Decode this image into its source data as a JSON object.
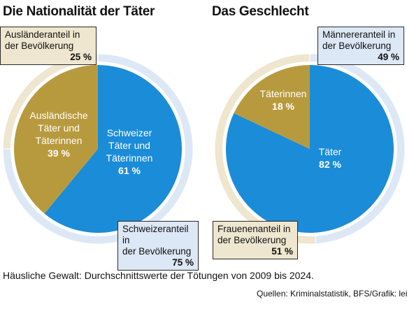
{
  "chart_data": [
    {
      "type": "pie",
      "title": "Die Nationalität der Täter",
      "categories": [
        "Schweizer Täter und Täterinnen",
        "Ausländische Täter und Täterinnen"
      ],
      "values": [
        61,
        39
      ],
      "colors": [
        "#1b8cd8",
        "#b89a3e"
      ],
      "slice_labels": [
        {
          "lines": [
            "Schweizer",
            "Täter und",
            "Täterinnen"
          ],
          "pct": "61 %"
        },
        {
          "lines": [
            "Ausländische",
            "Täter und",
            "Täterinnen"
          ],
          "pct": "39 %"
        }
      ],
      "ring": {
        "values": [
          75,
          25
        ],
        "colors": [
          "#dde8f6",
          "#efe6cf"
        ]
      },
      "annotations": [
        {
          "lines": [
            "Ausländeranteil in",
            "der Bevölkerung"
          ],
          "pct": "25 %"
        },
        {
          "lines": [
            "Schweizeranteil in",
            "der Bevölkerung"
          ],
          "pct": "75 %"
        }
      ]
    },
    {
      "type": "pie",
      "title": "Das Geschlecht",
      "categories": [
        "Täter",
        "Täterinnen"
      ],
      "values": [
        82,
        18
      ],
      "colors": [
        "#1b8cd8",
        "#b89a3e"
      ],
      "slice_labels": [
        {
          "lines": [
            "Täter"
          ],
          "pct": "82 %"
        },
        {
          "lines": [
            "Täterinnen"
          ],
          "pct": "18 %"
        }
      ],
      "ring": {
        "values": [
          49,
          51
        ],
        "colors": [
          "#dde8f6",
          "#efe6cf"
        ]
      },
      "annotations": [
        {
          "lines": [
            "Männereranteil in",
            "der Bevölkerung"
          ],
          "pct": "49 %"
        },
        {
          "lines": [
            "Frauenenanteil in",
            "der Bevölkerung"
          ],
          "pct": "51 %"
        }
      ]
    }
  ],
  "footnote": "Häusliche Gewalt: Durchschnittswerte der Tötungen von 2009 bis 2024.",
  "source": "Quellen: Kriminalstatistik, BFS/Grafik: lei"
}
